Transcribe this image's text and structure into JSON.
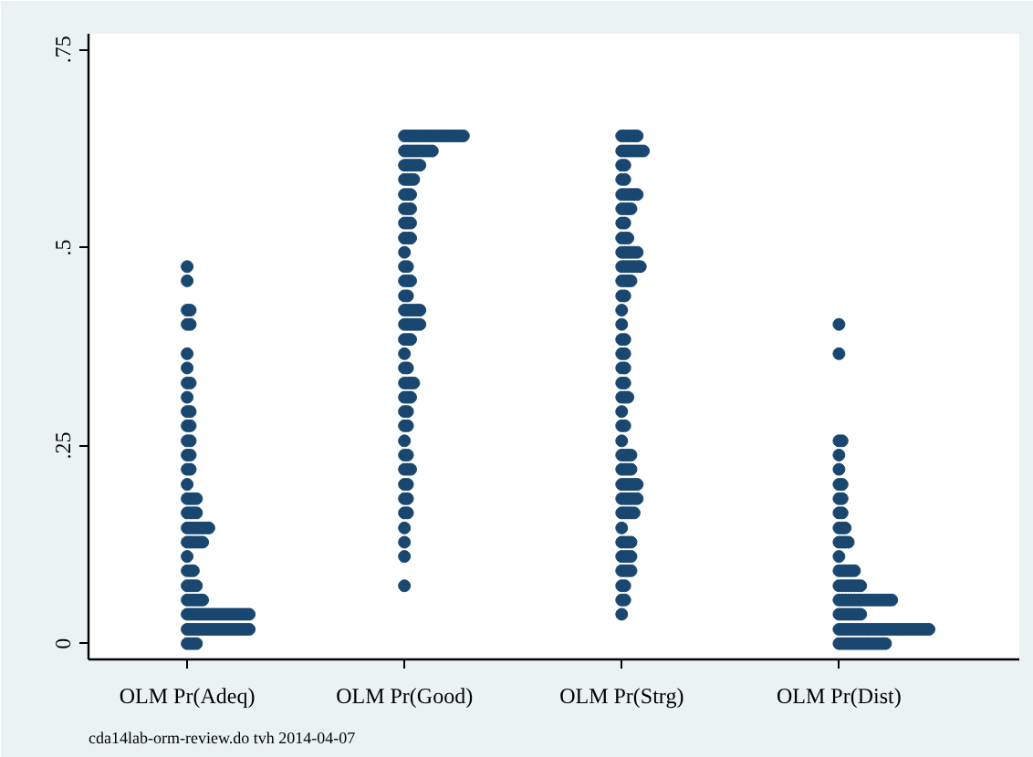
{
  "chart_data": {
    "type": "scatter",
    "categories": [
      "OLM Pr(Adeq)",
      "OLM Pr(Good)",
      "OLM Pr(Strg)",
      "OLM Pr(Dist)"
    ],
    "ylim": [
      -0.02,
      0.77
    ],
    "yticks": [
      0,
      {
        "value": 0.25,
        "label": ".25"
      },
      {
        "value": 0.5,
        "label": ".5"
      },
      {
        "value": 0.75,
        "label": ".75"
      }
    ],
    "marker": "circle",
    "annotations": [
      "cda14lab-orm-review.do tvh 2014-04-07"
    ],
    "series": [
      {
        "color": "#1a476f",
        "values": [
          0,
          0,
          0,
          0,
          0.018,
          0.018,
          0.018,
          0.018,
          0.018,
          0.018,
          0.018,
          0.018,
          0.018,
          0.018,
          0.018,
          0.018,
          0.018,
          0.018,
          0.018,
          0.018,
          0.018,
          0.018,
          0.018,
          0.018,
          0.018,
          0.037,
          0.037,
          0.037,
          0.037,
          0.037,
          0.037,
          0.037,
          0.037,
          0.037,
          0.037,
          0.037,
          0.037,
          0.037,
          0.037,
          0.037,
          0.037,
          0.037,
          0.037,
          0.037,
          0.037,
          0.037,
          0.055,
          0.055,
          0.055,
          0.055,
          0.055,
          0.055,
          0.073,
          0.073,
          0.073,
          0.073,
          0.092,
          0.092,
          0.092,
          0.11,
          0.128,
          0.128,
          0.128,
          0.128,
          0.128,
          0.128,
          0.146,
          0.146,
          0.146,
          0.146,
          0.146,
          0.146,
          0.146,
          0.146,
          0.165,
          0.165,
          0.165,
          0.165,
          0.183,
          0.183,
          0.183,
          0.183,
          0.201,
          0.22,
          0.22,
          0.238,
          0.238,
          0.256,
          0.256,
          0.275,
          0.275,
          0.293,
          0.293,
          0.311,
          0.329,
          0.329,
          0.348,
          0.366,
          0.403,
          0.403,
          0.421,
          0.421,
          0.458,
          0.476
        ],
        "x": [
          "OLM Pr(Adeq)",
          "OLM Pr(Adeq)",
          "OLM Pr(Adeq)",
          "OLM Pr(Adeq)",
          "OLM Pr(Adeq)",
          "OLM Pr(Adeq)",
          "OLM Pr(Adeq)",
          "OLM Pr(Adeq)",
          "OLM Pr(Adeq)",
          "OLM Pr(Adeq)",
          "OLM Pr(Adeq)",
          "OLM Pr(Adeq)",
          "OLM Pr(Adeq)",
          "OLM Pr(Adeq)",
          "OLM Pr(Adeq)",
          "OLM Pr(Adeq)",
          "OLM Pr(Adeq)",
          "OLM Pr(Adeq)",
          "OLM Pr(Adeq)",
          "OLM Pr(Adeq)",
          "OLM Pr(Adeq)",
          "OLM Pr(Adeq)",
          "OLM Pr(Adeq)",
          "OLM Pr(Adeq)",
          "OLM Pr(Adeq)",
          "OLM Pr(Adeq)",
          "OLM Pr(Adeq)",
          "OLM Pr(Adeq)",
          "OLM Pr(Adeq)",
          "OLM Pr(Adeq)",
          "OLM Pr(Adeq)",
          "OLM Pr(Adeq)",
          "OLM Pr(Adeq)",
          "OLM Pr(Adeq)",
          "OLM Pr(Adeq)",
          "OLM Pr(Adeq)",
          "OLM Pr(Adeq)",
          "OLM Pr(Adeq)",
          "OLM Pr(Adeq)",
          "OLM Pr(Adeq)",
          "OLM Pr(Adeq)",
          "OLM Pr(Adeq)",
          "OLM Pr(Adeq)",
          "OLM Pr(Adeq)",
          "OLM Pr(Adeq)",
          "OLM Pr(Adeq)",
          "OLM Pr(Adeq)",
          "OLM Pr(Adeq)",
          "OLM Pr(Adeq)",
          "OLM Pr(Adeq)",
          "OLM Pr(Adeq)",
          "OLM Pr(Adeq)",
          "OLM Pr(Adeq)",
          "OLM Pr(Adeq)",
          "OLM Pr(Adeq)",
          "OLM Pr(Adeq)",
          "OLM Pr(Adeq)",
          "OLM Pr(Adeq)",
          "OLM Pr(Adeq)",
          "OLM Pr(Adeq)",
          "OLM Pr(Adeq)",
          "OLM Pr(Adeq)",
          "OLM Pr(Adeq)",
          "OLM Pr(Adeq)",
          "OLM Pr(Adeq)",
          "OLM Pr(Adeq)",
          "OLM Pr(Adeq)",
          "OLM Pr(Adeq)",
          "OLM Pr(Adeq)",
          "OLM Pr(Adeq)",
          "OLM Pr(Adeq)",
          "OLM Pr(Adeq)",
          "OLM Pr(Adeq)",
          "OLM Pr(Adeq)",
          "OLM Pr(Adeq)",
          "OLM Pr(Adeq)",
          "OLM Pr(Adeq)",
          "OLM Pr(Adeq)",
          "OLM Pr(Adeq)",
          "OLM Pr(Adeq)",
          "OLM Pr(Adeq)",
          "OLM Pr(Adeq)",
          "OLM Pr(Adeq)",
          "OLM Pr(Adeq)",
          "OLM Pr(Adeq)",
          "OLM Pr(Adeq)",
          "OLM Pr(Adeq)",
          "OLM Pr(Adeq)",
          "OLM Pr(Adeq)",
          "OLM Pr(Adeq)",
          "OLM Pr(Adeq)",
          "OLM Pr(Adeq)",
          "OLM Pr(Adeq)",
          "OLM Pr(Adeq)",
          "OLM Pr(Adeq)",
          "OLM Pr(Adeq)",
          "OLM Pr(Adeq)",
          "OLM Pr(Adeq)",
          "OLM Pr(Adeq)",
          "OLM Pr(Adeq)",
          "OLM Pr(Adeq)",
          "OLM Pr(Adeq)",
          "OLM Pr(Adeq)",
          "OLM Pr(Adeq)"
        ]
      },
      {
        "color": "#1a476f",
        "values": [
          0.641,
          0.641,
          0.641,
          0.641,
          0.641,
          0.641,
          0.641,
          0.641,
          0.641,
          0.641,
          0.641,
          0.641,
          0.641,
          0.641,
          0.641,
          0.641,
          0.641,
          0.641,
          0.641,
          0.641,
          0.622,
          0.622,
          0.622,
          0.622,
          0.622,
          0.622,
          0.622,
          0.622,
          0.622,
          0.622,
          0.604,
          0.604,
          0.604,
          0.604,
          0.604,
          0.604,
          0.586,
          0.586,
          0.586,
          0.586,
          0.567,
          0.567,
          0.567,
          0.549,
          0.549,
          0.549,
          0.531,
          0.531,
          0.531,
          0.512,
          0.512,
          0.512,
          0.494,
          0.476,
          0.476,
          0.458,
          0.458,
          0.458,
          0.439,
          0.439,
          0.421,
          0.421,
          0.421,
          0.421,
          0.421,
          0.421,
          0.403,
          0.403,
          0.403,
          0.403,
          0.403,
          0.403,
          0.384,
          0.384,
          0.384,
          0.366,
          0.348,
          0.348,
          0.329,
          0.329,
          0.329,
          0.329,
          0.311,
          0.311,
          0.311,
          0.293,
          0.293,
          0.275,
          0.275,
          0.256,
          0.238,
          0.238,
          0.22,
          0.22,
          0.22,
          0.201,
          0.201,
          0.183,
          0.183,
          0.165,
          0.165,
          0.146,
          0.128,
          0.11,
          0.073
        ],
        "x": [
          "OLM Pr(Good)",
          "OLM Pr(Good)",
          "OLM Pr(Good)",
          "OLM Pr(Good)",
          "OLM Pr(Good)",
          "OLM Pr(Good)",
          "OLM Pr(Good)",
          "OLM Pr(Good)",
          "OLM Pr(Good)",
          "OLM Pr(Good)",
          "OLM Pr(Good)",
          "OLM Pr(Good)",
          "OLM Pr(Good)",
          "OLM Pr(Good)",
          "OLM Pr(Good)",
          "OLM Pr(Good)",
          "OLM Pr(Good)",
          "OLM Pr(Good)",
          "OLM Pr(Good)",
          "OLM Pr(Good)",
          "OLM Pr(Good)",
          "OLM Pr(Good)",
          "OLM Pr(Good)",
          "OLM Pr(Good)",
          "OLM Pr(Good)",
          "OLM Pr(Good)",
          "OLM Pr(Good)",
          "OLM Pr(Good)",
          "OLM Pr(Good)",
          "OLM Pr(Good)",
          "OLM Pr(Good)",
          "OLM Pr(Good)",
          "OLM Pr(Good)",
          "OLM Pr(Good)",
          "OLM Pr(Good)",
          "OLM Pr(Good)",
          "OLM Pr(Good)",
          "OLM Pr(Good)",
          "OLM Pr(Good)",
          "OLM Pr(Good)",
          "OLM Pr(Good)",
          "OLM Pr(Good)",
          "OLM Pr(Good)",
          "OLM Pr(Good)",
          "OLM Pr(Good)",
          "OLM Pr(Good)",
          "OLM Pr(Good)",
          "OLM Pr(Good)",
          "OLM Pr(Good)",
          "OLM Pr(Good)",
          "OLM Pr(Good)",
          "OLM Pr(Good)",
          "OLM Pr(Good)",
          "OLM Pr(Good)",
          "OLM Pr(Good)",
          "OLM Pr(Good)",
          "OLM Pr(Good)",
          "OLM Pr(Good)",
          "OLM Pr(Good)",
          "OLM Pr(Good)",
          "OLM Pr(Good)",
          "OLM Pr(Good)",
          "OLM Pr(Good)",
          "OLM Pr(Good)",
          "OLM Pr(Good)",
          "OLM Pr(Good)",
          "OLM Pr(Good)",
          "OLM Pr(Good)",
          "OLM Pr(Good)",
          "OLM Pr(Good)",
          "OLM Pr(Good)",
          "OLM Pr(Good)",
          "OLM Pr(Good)",
          "OLM Pr(Good)",
          "OLM Pr(Good)",
          "OLM Pr(Good)",
          "OLM Pr(Good)",
          "OLM Pr(Good)",
          "OLM Pr(Good)",
          "OLM Pr(Good)",
          "OLM Pr(Good)",
          "OLM Pr(Good)",
          "OLM Pr(Good)",
          "OLM Pr(Good)",
          "OLM Pr(Good)",
          "OLM Pr(Good)",
          "OLM Pr(Good)",
          "OLM Pr(Good)",
          "OLM Pr(Good)",
          "OLM Pr(Good)",
          "OLM Pr(Good)",
          "OLM Pr(Good)",
          "OLM Pr(Good)",
          "OLM Pr(Good)",
          "OLM Pr(Good)",
          "OLM Pr(Good)",
          "OLM Pr(Good)",
          "OLM Pr(Good)",
          "OLM Pr(Good)",
          "OLM Pr(Good)",
          "OLM Pr(Good)",
          "OLM Pr(Good)",
          "OLM Pr(Good)",
          "OLM Pr(Good)",
          "OLM Pr(Good)"
        ]
      },
      {
        "color": "#1a476f",
        "values": [
          0.641,
          0.641,
          0.641,
          0.641,
          0.641,
          0.641,
          0.622,
          0.622,
          0.622,
          0.622,
          0.622,
          0.622,
          0.622,
          0.622,
          0.604,
          0.604,
          0.586,
          0.586,
          0.567,
          0.567,
          0.567,
          0.567,
          0.567,
          0.567,
          0.549,
          0.549,
          0.549,
          0.549,
          0.531,
          0.531,
          0.512,
          0.512,
          0.512,
          0.494,
          0.494,
          0.494,
          0.494,
          0.494,
          0.494,
          0.476,
          0.476,
          0.476,
          0.476,
          0.476,
          0.476,
          0.476,
          0.458,
          0.458,
          0.458,
          0.458,
          0.439,
          0.439,
          0.421,
          0.403,
          0.384,
          0.384,
          0.366,
          0.366,
          0.348,
          0.348,
          0.329,
          0.329,
          0.311,
          0.311,
          0.311,
          0.293,
          0.275,
          0.275,
          0.256,
          0.238,
          0.238,
          0.238,
          0.238,
          0.22,
          0.22,
          0.22,
          0.22,
          0.201,
          0.201,
          0.201,
          0.201,
          0.201,
          0.201,
          0.183,
          0.183,
          0.183,
          0.183,
          0.183,
          0.183,
          0.165,
          0.165,
          0.165,
          0.165,
          0.165,
          0.146,
          0.128,
          0.128,
          0.128,
          0.128,
          0.11,
          0.11,
          0.11,
          0.11,
          0.092,
          0.092,
          0.092,
          0.092,
          0.073,
          0.073,
          0.055,
          0.055,
          0.037
        ],
        "x": [
          "OLM Pr(Strg)",
          "OLM Pr(Strg)",
          "OLM Pr(Strg)",
          "OLM Pr(Strg)",
          "OLM Pr(Strg)",
          "OLM Pr(Strg)",
          "OLM Pr(Strg)",
          "OLM Pr(Strg)",
          "OLM Pr(Strg)",
          "OLM Pr(Strg)",
          "OLM Pr(Strg)",
          "OLM Pr(Strg)",
          "OLM Pr(Strg)",
          "OLM Pr(Strg)",
          "OLM Pr(Strg)",
          "OLM Pr(Strg)",
          "OLM Pr(Strg)",
          "OLM Pr(Strg)",
          "OLM Pr(Strg)",
          "OLM Pr(Strg)",
          "OLM Pr(Strg)",
          "OLM Pr(Strg)",
          "OLM Pr(Strg)",
          "OLM Pr(Strg)",
          "OLM Pr(Strg)",
          "OLM Pr(Strg)",
          "OLM Pr(Strg)",
          "OLM Pr(Strg)",
          "OLM Pr(Strg)",
          "OLM Pr(Strg)",
          "OLM Pr(Strg)",
          "OLM Pr(Strg)",
          "OLM Pr(Strg)",
          "OLM Pr(Strg)",
          "OLM Pr(Strg)",
          "OLM Pr(Strg)",
          "OLM Pr(Strg)",
          "OLM Pr(Strg)",
          "OLM Pr(Strg)",
          "OLM Pr(Strg)",
          "OLM Pr(Strg)",
          "OLM Pr(Strg)",
          "OLM Pr(Strg)",
          "OLM Pr(Strg)",
          "OLM Pr(Strg)",
          "OLM Pr(Strg)",
          "OLM Pr(Strg)",
          "OLM Pr(Strg)",
          "OLM Pr(Strg)",
          "OLM Pr(Strg)",
          "OLM Pr(Strg)",
          "OLM Pr(Strg)",
          "OLM Pr(Strg)",
          "OLM Pr(Strg)",
          "OLM Pr(Strg)",
          "OLM Pr(Strg)",
          "OLM Pr(Strg)",
          "OLM Pr(Strg)",
          "OLM Pr(Strg)",
          "OLM Pr(Strg)",
          "OLM Pr(Strg)",
          "OLM Pr(Strg)",
          "OLM Pr(Strg)",
          "OLM Pr(Strg)",
          "OLM Pr(Strg)",
          "OLM Pr(Strg)",
          "OLM Pr(Strg)",
          "OLM Pr(Strg)",
          "OLM Pr(Strg)",
          "OLM Pr(Strg)",
          "OLM Pr(Strg)",
          "OLM Pr(Strg)",
          "OLM Pr(Strg)",
          "OLM Pr(Strg)",
          "OLM Pr(Strg)",
          "OLM Pr(Strg)",
          "OLM Pr(Strg)",
          "OLM Pr(Strg)",
          "OLM Pr(Strg)",
          "OLM Pr(Strg)",
          "OLM Pr(Strg)",
          "OLM Pr(Strg)",
          "OLM Pr(Strg)",
          "OLM Pr(Strg)",
          "OLM Pr(Strg)",
          "OLM Pr(Strg)",
          "OLM Pr(Strg)",
          "OLM Pr(Strg)",
          "OLM Pr(Strg)",
          "OLM Pr(Strg)",
          "OLM Pr(Strg)",
          "OLM Pr(Strg)",
          "OLM Pr(Strg)",
          "OLM Pr(Strg)",
          "OLM Pr(Strg)",
          "OLM Pr(Strg)",
          "OLM Pr(Strg)",
          "OLM Pr(Strg)",
          "OLM Pr(Strg)",
          "OLM Pr(Strg)",
          "OLM Pr(Strg)",
          "OLM Pr(Strg)",
          "OLM Pr(Strg)",
          "OLM Pr(Strg)",
          "OLM Pr(Strg)",
          "OLM Pr(Strg)",
          "OLM Pr(Strg)",
          "OLM Pr(Strg)",
          "OLM Pr(Strg)",
          "OLM Pr(Strg)",
          "OLM Pr(Strg)",
          "OLM Pr(Strg)"
        ]
      },
      {
        "color": "#1a476f",
        "values": [
          0.403,
          0.366,
          0.256,
          0.256,
          0.238,
          0.22,
          0.201,
          0.201,
          0.183,
          0.183,
          0.165,
          0.165,
          0.146,
          0.146,
          0.146,
          0.128,
          0.128,
          0.128,
          0.128,
          0.11,
          0.092,
          0.092,
          0.092,
          0.092,
          0.092,
          0.092,
          0.073,
          0.073,
          0.073,
          0.073,
          0.073,
          0.073,
          0.073,
          0.073,
          0.055,
          0.055,
          0.055,
          0.055,
          0.055,
          0.055,
          0.055,
          0.055,
          0.055,
          0.055,
          0.055,
          0.055,
          0.055,
          0.055,
          0.055,
          0.055,
          0.055,
          0.055,
          0.037,
          0.037,
          0.037,
          0.037,
          0.037,
          0.037,
          0.037,
          0.037,
          0.018,
          0.018,
          0.018,
          0.018,
          0.018,
          0.018,
          0.018,
          0.018,
          0.018,
          0.018,
          0.018,
          0.018,
          0.018,
          0.018,
          0.018,
          0.018,
          0.018,
          0.018,
          0.018,
          0.018,
          0.018,
          0.018,
          0.018,
          0.018,
          0.018,
          0.018,
          0.018,
          0.018,
          0.018,
          0.018,
          0,
          0,
          0,
          0,
          0,
          0,
          0,
          0,
          0,
          0,
          0,
          0,
          0,
          0,
          0,
          0
        ],
        "x": [
          "OLM Pr(Dist)",
          "OLM Pr(Dist)",
          "OLM Pr(Dist)",
          "OLM Pr(Dist)",
          "OLM Pr(Dist)",
          "OLM Pr(Dist)",
          "OLM Pr(Dist)",
          "OLM Pr(Dist)",
          "OLM Pr(Dist)",
          "OLM Pr(Dist)",
          "OLM Pr(Dist)",
          "OLM Pr(Dist)",
          "OLM Pr(Dist)",
          "OLM Pr(Dist)",
          "OLM Pr(Dist)",
          "OLM Pr(Dist)",
          "OLM Pr(Dist)",
          "OLM Pr(Dist)",
          "OLM Pr(Dist)",
          "OLM Pr(Dist)",
          "OLM Pr(Dist)",
          "OLM Pr(Dist)",
          "OLM Pr(Dist)",
          "OLM Pr(Dist)",
          "OLM Pr(Dist)",
          "OLM Pr(Dist)",
          "OLM Pr(Dist)",
          "OLM Pr(Dist)",
          "OLM Pr(Dist)",
          "OLM Pr(Dist)",
          "OLM Pr(Dist)",
          "OLM Pr(Dist)",
          "OLM Pr(Dist)",
          "OLM Pr(Dist)",
          "OLM Pr(Dist)",
          "OLM Pr(Dist)",
          "OLM Pr(Dist)",
          "OLM Pr(Dist)",
          "OLM Pr(Dist)",
          "OLM Pr(Dist)",
          "OLM Pr(Dist)",
          "OLM Pr(Dist)",
          "OLM Pr(Dist)",
          "OLM Pr(Dist)",
          "OLM Pr(Dist)",
          "OLM Pr(Dist)",
          "OLM Pr(Dist)",
          "OLM Pr(Dist)",
          "OLM Pr(Dist)",
          "OLM Pr(Dist)",
          "OLM Pr(Dist)",
          "OLM Pr(Dist)",
          "OLM Pr(Dist)",
          "OLM Pr(Dist)",
          "OLM Pr(Dist)",
          "OLM Pr(Dist)",
          "OLM Pr(Dist)",
          "OLM Pr(Dist)",
          "OLM Pr(Dist)",
          "OLM Pr(Dist)",
          "OLM Pr(Dist)",
          "OLM Pr(Dist)",
          "OLM Pr(Dist)",
          "OLM Pr(Dist)",
          "OLM Pr(Dist)",
          "OLM Pr(Dist)",
          "OLM Pr(Dist)",
          "OLM Pr(Dist)",
          "OLM Pr(Dist)",
          "OLM Pr(Dist)",
          "OLM Pr(Dist)",
          "OLM Pr(Dist)",
          "OLM Pr(Dist)",
          "OLM Pr(Dist)",
          "OLM Pr(Dist)",
          "OLM Pr(Dist)",
          "OLM Pr(Dist)",
          "OLM Pr(Dist)",
          "OLM Pr(Dist)",
          "OLM Pr(Dist)",
          "OLM Pr(Dist)",
          "OLM Pr(Dist)",
          "OLM Pr(Dist)",
          "OLM Pr(Dist)",
          "OLM Pr(Dist)",
          "OLM Pr(Dist)",
          "OLM Pr(Dist)",
          "OLM Pr(Dist)",
          "OLM Pr(Dist)",
          "OLM Pr(Dist)",
          "OLM Pr(Dist)",
          "OLM Pr(Dist)",
          "OLM Pr(Dist)",
          "OLM Pr(Dist)",
          "OLM Pr(Dist)",
          "OLM Pr(Dist)",
          "OLM Pr(Dist)",
          "OLM Pr(Dist)",
          "OLM Pr(Dist)",
          "OLM Pr(Dist)",
          "OLM Pr(Dist)",
          "OLM Pr(Dist)",
          "OLM Pr(Dist)",
          "OLM Pr(Dist)",
          "OLM Pr(Dist)",
          "OLM Pr(Dist)"
        ]
      }
    ]
  }
}
